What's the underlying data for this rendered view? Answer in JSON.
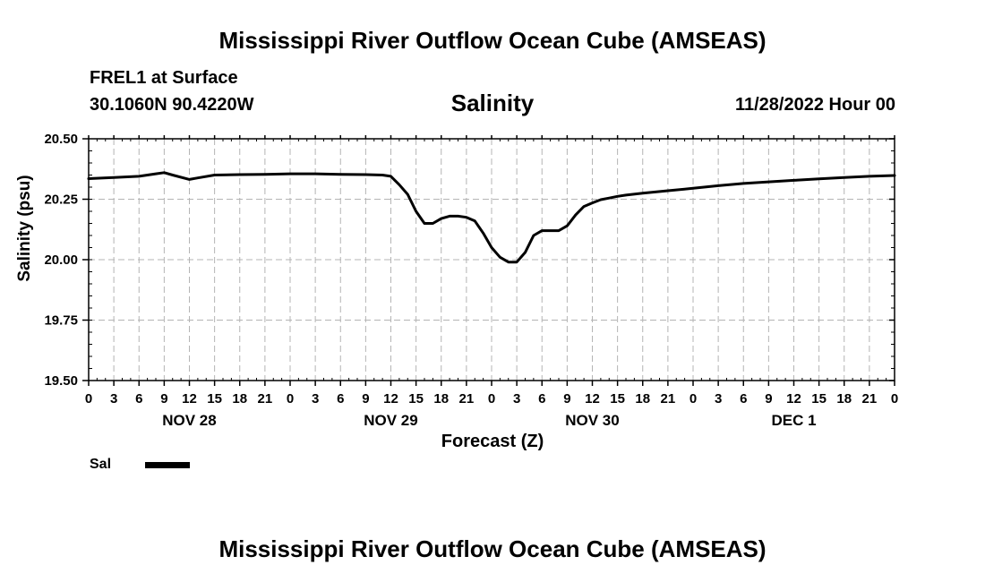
{
  "header": {
    "title": "Mississippi River Outflow Ocean Cube (AMSEAS)",
    "station": "FREL1 at Surface",
    "coordinates": "30.1060N  90.4220W",
    "run": "11/28/2022 Hour 00",
    "footer_title": "Mississippi River Outflow Ocean Cube (AMSEAS)"
  },
  "chart_data": {
    "type": "line",
    "title": "Salinity",
    "xlabel": "Forecast (Z)",
    "ylabel": "Salinity (psu)",
    "ylim": [
      19.5,
      20.5
    ],
    "yticks": [
      "19.50",
      "19.75",
      "20.00",
      "20.25",
      "20.50"
    ],
    "xlim": [
      0,
      96
    ],
    "x_hour_ticks": [
      "0",
      "3",
      "6",
      "9",
      "12",
      "15",
      "18",
      "21",
      "0",
      "3",
      "6",
      "9",
      "12",
      "15",
      "18",
      "21",
      "0",
      "3",
      "6",
      "9",
      "12",
      "15",
      "18",
      "21",
      "0",
      "3",
      "6",
      "9",
      "12",
      "15",
      "18",
      "21",
      "0"
    ],
    "date_labels": [
      {
        "hour": 12,
        "label": "NOV 28"
      },
      {
        "hour": 36,
        "label": "NOV 29"
      },
      {
        "hour": 60,
        "label": "NOV 30"
      },
      {
        "hour": 84,
        "label": "DEC 1"
      }
    ],
    "grid": true,
    "series": [
      {
        "name": "Sal",
        "x": [
          0,
          3,
          6,
          8,
          9,
          10,
          12,
          13,
          15,
          18,
          21,
          24,
          27,
          30,
          33,
          35,
          36,
          37,
          38,
          39,
          40,
          41,
          42,
          43,
          44,
          45,
          46,
          47,
          48,
          49,
          50,
          51,
          52,
          53,
          54,
          55,
          56,
          57,
          58,
          59,
          60,
          61,
          62,
          63,
          64,
          66,
          69,
          72,
          75,
          78,
          81,
          84,
          87,
          90,
          93,
          96
        ],
        "y": [
          20.335,
          20.34,
          20.345,
          20.355,
          20.36,
          20.35,
          20.332,
          20.338,
          20.35,
          20.352,
          20.353,
          20.355,
          20.355,
          20.353,
          20.352,
          20.35,
          20.345,
          20.31,
          20.27,
          20.2,
          20.15,
          20.15,
          20.17,
          20.18,
          20.18,
          20.175,
          20.16,
          20.11,
          20.05,
          20.01,
          19.99,
          19.99,
          20.03,
          20.1,
          20.12,
          20.12,
          20.12,
          20.14,
          20.185,
          20.22,
          20.235,
          20.248,
          20.255,
          20.262,
          20.267,
          20.275,
          20.285,
          20.295,
          20.306,
          20.315,
          20.322,
          20.328,
          20.334,
          20.34,
          20.345,
          20.348
        ]
      }
    ],
    "legend": [
      {
        "label": "Sal",
        "position": "bottom-left"
      }
    ]
  }
}
